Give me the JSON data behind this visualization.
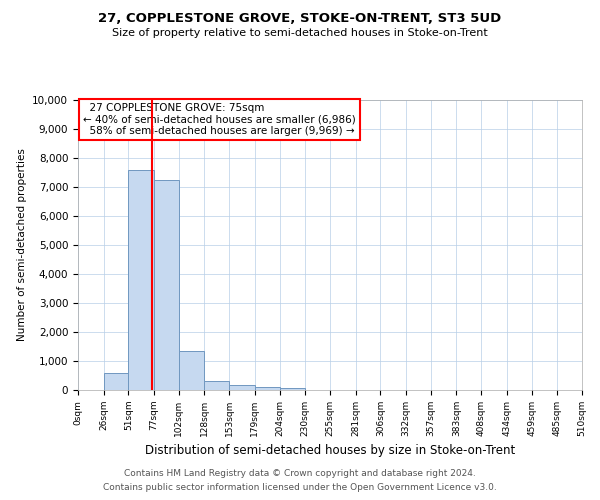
{
  "title": "27, COPPLESTONE GROVE, STOKE-ON-TRENT, ST3 5UD",
  "subtitle": "Size of property relative to semi-detached houses in Stoke-on-Trent",
  "xlabel": "Distribution of semi-detached houses by size in Stoke-on-Trent",
  "ylabel": "Number of semi-detached properties",
  "property_size": 75,
  "property_label": "27 COPPLESTONE GROVE: 75sqm",
  "pct_smaller": 40,
  "n_smaller": 6986,
  "pct_larger": 58,
  "n_larger": 9969,
  "bin_edges": [
    0,
    26,
    51,
    77,
    102,
    128,
    153,
    179,
    204,
    230,
    255,
    281,
    306,
    332,
    357,
    383,
    408,
    434,
    459,
    485,
    510
  ],
  "bin_counts": [
    0,
    580,
    7600,
    7250,
    1340,
    310,
    160,
    90,
    70,
    0,
    0,
    0,
    0,
    0,
    0,
    0,
    0,
    0,
    0,
    0
  ],
  "bar_color": "#c6d9f0",
  "bar_edge_color": "#7097c0",
  "red_line_x": 75,
  "ylim": [
    0,
    10000
  ],
  "yticks": [
    0,
    1000,
    2000,
    3000,
    4000,
    5000,
    6000,
    7000,
    8000,
    9000,
    10000
  ],
  "footer_line1": "Contains HM Land Registry data © Crown copyright and database right 2024.",
  "footer_line2": "Contains public sector information licensed under the Open Government Licence v3.0.",
  "tick_labels": [
    "0sqm",
    "26sqm",
    "51sqm",
    "77sqm",
    "102sqm",
    "128sqm",
    "153sqm",
    "179sqm",
    "204sqm",
    "230sqm",
    "255sqm",
    "281sqm",
    "306sqm",
    "332sqm",
    "357sqm",
    "383sqm",
    "408sqm",
    "434sqm",
    "459sqm",
    "485sqm",
    "510sqm"
  ]
}
